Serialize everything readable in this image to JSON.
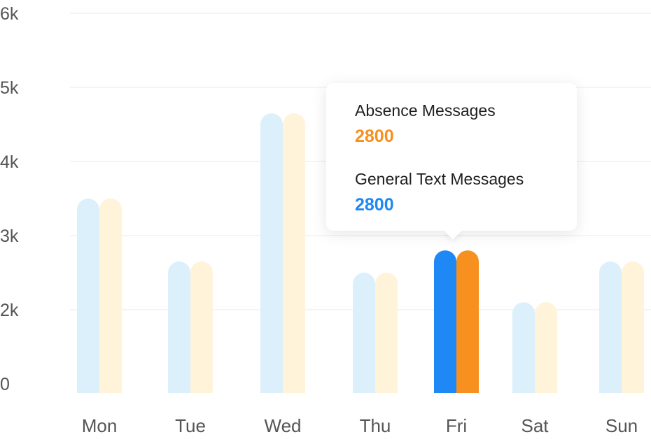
{
  "chart_data": {
    "type": "bar",
    "categories": [
      "Mon",
      "Tue",
      "Wed",
      "Thu",
      "Fri",
      "Sat",
      "Sun"
    ],
    "series": [
      {
        "name": "General Text Messages",
        "values": [
          3500,
          2650,
          4650,
          2500,
          2800,
          2100,
          2650
        ]
      },
      {
        "name": "Absence Messages",
        "values": [
          3500,
          2650,
          4650,
          2500,
          2800,
          2100,
          2650
        ]
      }
    ],
    "yticks": [
      "0",
      "2k",
      "3k",
      "4k",
      "5k",
      "6k"
    ],
    "highlight_index": 4,
    "colors": {
      "general_highlight": "#1E88F5",
      "absence_highlight": "#F7901E",
      "general_muted": "#DCF0FC",
      "absence_muted": "#FFF3D9",
      "grid": "#F1F1F1"
    },
    "grid": true
  },
  "tooltip": {
    "absence_label": "Absence Messages",
    "absence_value": "2800",
    "general_label": "General Text Messages",
    "general_value": "2800"
  }
}
